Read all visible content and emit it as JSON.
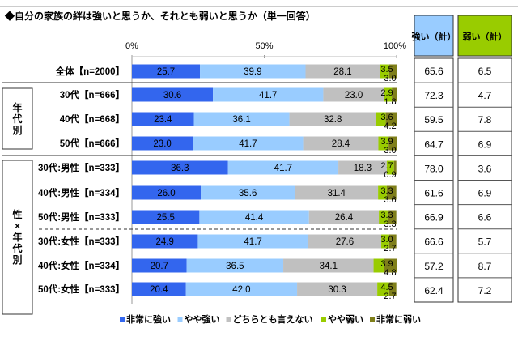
{
  "chart_data": {
    "type": "bar",
    "stacked": true,
    "orientation": "horizontal",
    "title": "◆自分の家族の絆は強いと思うか、それとも弱いと思うか（単一回答）",
    "x_ticks": [
      "0%",
      "50%",
      "100%"
    ],
    "xlim": [
      0,
      100
    ],
    "categories": [
      "全体【n=2000】",
      "30代【n=666】",
      "40代【n=668】",
      "50代【n=666】",
      "30代:男性【n=333】",
      "40代:男性【n=334】",
      "50代:男性【n=333】",
      "30代:女性【n=333】",
      "40代:女性【n=334】",
      "50代:女性【n=333】"
    ],
    "groups": [
      {
        "label": "年代別",
        "rows": [
          1,
          3
        ]
      },
      {
        "label": "性×年代別",
        "rows": [
          4,
          9
        ]
      }
    ],
    "series": [
      {
        "name": "非常に強い",
        "color": "#3366ee",
        "values": [
          25.7,
          30.6,
          23.4,
          23.0,
          36.3,
          26.0,
          25.5,
          24.9,
          20.7,
          20.4
        ]
      },
      {
        "name": "やや強い",
        "color": "#99ccff",
        "values": [
          39.9,
          41.7,
          36.1,
          41.7,
          41.7,
          35.6,
          41.4,
          41.7,
          36.5,
          42.0
        ]
      },
      {
        "name": "どちらとも言えない",
        "color": "#c0c0c0",
        "values": [
          28.1,
          23.0,
          32.8,
          28.4,
          18.3,
          31.4,
          26.4,
          27.6,
          34.1,
          30.3
        ]
      },
      {
        "name": "やや弱い",
        "color": "#99cc00",
        "values": [
          3.5,
          2.9,
          3.6,
          3.9,
          2.7,
          3.3,
          3.3,
          3.0,
          3.9,
          4.5
        ]
      },
      {
        "name": "非常に弱い",
        "color": "#7f7f1a",
        "values": [
          3.0,
          1.8,
          4.2,
          3.0,
          0.9,
          3.6,
          3.3,
          2.7,
          4.8,
          2.7
        ]
      }
    ],
    "legend_position": "bottom",
    "summary_table": {
      "headers": [
        "強い（計）",
        "弱い（計）"
      ],
      "header_colors": [
        "#99ccff",
        "#99cc00"
      ],
      "strong_total": [
        "65.6",
        "72.3",
        "59.5",
        "64.7",
        "78.0",
        "61.6",
        "66.9",
        "66.6",
        "57.2",
        "62.4"
      ],
      "weak_total": [
        "6.5",
        "4.7",
        "7.8",
        "6.9",
        "3.6",
        "6.9",
        "6.6",
        "5.7",
        "8.7",
        "7.2"
      ]
    }
  }
}
